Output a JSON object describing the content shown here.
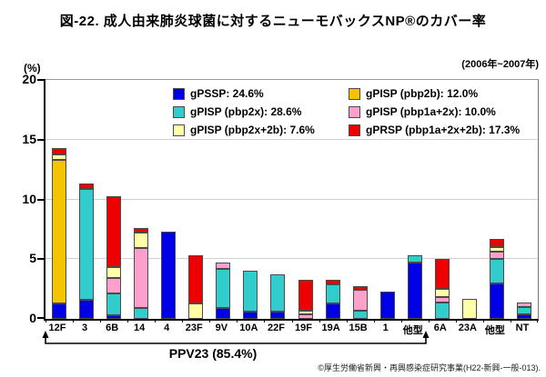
{
  "title": "図-22. 成人由来肺炎球菌に対するニューモバックスNP®のカバー率",
  "period": "(2006年~2007年)",
  "y_axis": {
    "unit_label": "(%)",
    "ticks": [
      0,
      5,
      10,
      15,
      20
    ],
    "max": 20
  },
  "bracket": {
    "label": "PPV23 (85.4%)"
  },
  "credit": "©厚生労働省新興・再興感染症研究事業(H22-新興-一般-013).",
  "colors": {
    "gpssp_blue": "#0000e6",
    "gpisp_pbp2x_teal": "#33cccc",
    "gpisp_pbp2b_gold": "#f5c400",
    "gpisp_pbp1a2x_pink": "#ff9fcc",
    "gpisp_pbp2x2b_paleyellow": "#ffffa8",
    "gprsp_red": "#ee0000",
    "segment_border": "#4a4a4a"
  },
  "legend": {
    "columns": [
      [
        {
          "label": "gPSSP: 24.6%",
          "color": "#0000e6"
        },
        {
          "label": "gPISP (pbp2x): 28.6%",
          "color": "#33cccc"
        },
        {
          "label": "gPISP (pbp2x+2b): 7.6%",
          "color": "#ffffa8"
        }
      ],
      [
        {
          "label": "gPISP (pbp2b): 12.0%",
          "color": "#f5c400"
        },
        {
          "label": "gPISP (pbp1a+2x): 10.0%",
          "color": "#ff9fcc"
        },
        {
          "label": "gPRSP (pbp1a+2x+2b): 17.3%",
          "color": "#ee0000"
        }
      ]
    ]
  },
  "chart_data": {
    "type": "bar",
    "stacked": true,
    "title": "図-22. 成人由来肺炎球菌に対するニューモバックスNP®のカバー率",
    "subtitle": "(2006年~2007年)",
    "ylabel": "(%)",
    "ylim": [
      0,
      20
    ],
    "yticks": [
      0,
      5,
      10,
      15,
      20
    ],
    "grid": "horizontal",
    "legend_position": "top-inside",
    "categories": [
      "12F",
      "3",
      "6B",
      "14",
      "4",
      "23F",
      "9V",
      "10A",
      "22F",
      "19F",
      "19A",
      "15B",
      "1",
      "他型",
      "6A",
      "23A",
      "他型",
      "NT"
    ],
    "series": [
      {
        "name": "gPSSP",
        "total_pct": 24.6,
        "color": "#0000e6",
        "values": [
          1.3,
          1.6,
          0.3,
          0,
          7.3,
          0,
          0.9,
          0.6,
          0.6,
          0,
          1.3,
          0,
          2.3,
          4.7,
          0,
          0,
          3.0,
          0.4
        ]
      },
      {
        "name": "gPISP (pbp2x)",
        "total_pct": 28.6,
        "color": "#33cccc",
        "values": [
          0,
          9.3,
          1.8,
          0.9,
          0,
          0,
          3.3,
          3.4,
          3.1,
          0,
          1.6,
          0.7,
          0,
          0.6,
          1.4,
          0,
          2.0,
          0.6
        ]
      },
      {
        "name": "gPISP (pbp2b)",
        "total_pct": 12.0,
        "color": "#f5c400",
        "values": [
          12.0,
          0,
          0,
          0,
          0,
          0,
          0,
          0,
          0,
          0,
          0,
          0,
          0,
          0,
          0,
          0,
          0,
          0
        ]
      },
      {
        "name": "gPISP (pbp1a+2x)",
        "total_pct": 10.0,
        "color": "#ff9fcc",
        "values": [
          0,
          0,
          1.3,
          5.0,
          0,
          0,
          0.5,
          0,
          0,
          0.4,
          0,
          1.7,
          0,
          0,
          0.4,
          0,
          0.6,
          0.4
        ]
      },
      {
        "name": "gPISP (pbp2x+2b)",
        "total_pct": 7.6,
        "color": "#ffffa8",
        "values": [
          0.5,
          0,
          0.9,
          1.3,
          0,
          1.3,
          0,
          0,
          0,
          0.3,
          0,
          0,
          0,
          0,
          0.7,
          1.7,
          0.4,
          0
        ]
      },
      {
        "name": "gPRSP (pbp1a+2x+2b)",
        "total_pct": 17.3,
        "color": "#ee0000",
        "values": [
          0.5,
          0.4,
          6.0,
          0.4,
          0,
          4.0,
          0,
          0,
          0,
          2.6,
          0.4,
          0.3,
          0,
          0,
          2.5,
          0,
          0.7,
          0
        ]
      }
    ],
    "bar_totals": [
      14.3,
      11.3,
      10.3,
      7.6,
      7.3,
      5.3,
      4.7,
      4.0,
      3.7,
      3.3,
      3.3,
      2.7,
      2.3,
      5.3,
      5.0,
      1.7,
      6.7,
      1.4
    ],
    "ppv23_bracket": {
      "label": "PPV23 (85.4%)",
      "from_category": "12F",
      "to_category": "他型",
      "span_count": 14
    }
  }
}
